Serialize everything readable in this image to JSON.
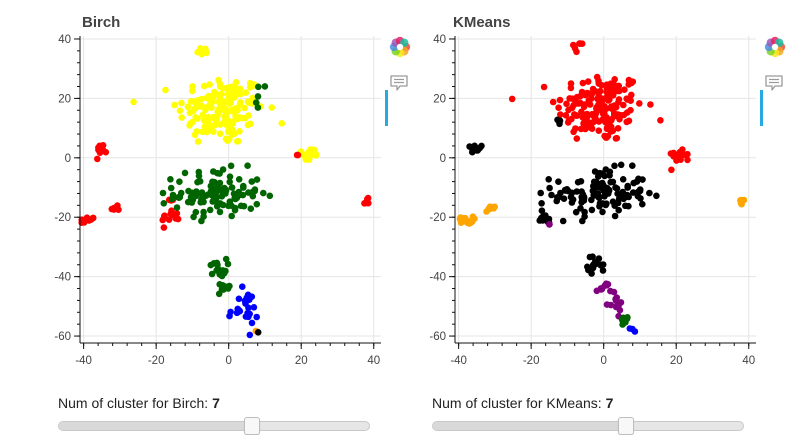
{
  "plots": [
    {
      "title": "Birch",
      "slider": {
        "label": "Num of cluster for Birch:",
        "value": 7,
        "min": 2,
        "max": 10
      }
    },
    {
      "title": "KMeans",
      "slider": {
        "label": "Num of cluster for KMeans:",
        "value": 7,
        "min": 2,
        "max": 10
      }
    }
  ],
  "toolbar": {
    "logo_icon": "bokeh-logo-icon",
    "tool_icon": "hover-tooltip-icon",
    "active_color": "#26aae1"
  },
  "colors": {
    "yellow": "#ffff00",
    "red": "#ff0000",
    "green": "#006400",
    "blue": "#0000ff",
    "orange": "#ffa500",
    "black": "#000000",
    "purple": "#800080"
  },
  "chart_data": [
    {
      "type": "scatter",
      "title": "Birch",
      "xlabel": "",
      "ylabel": "",
      "xlim": [
        -41,
        42
      ],
      "ylim": [
        -62,
        41
      ],
      "xticks": [
        -40,
        -20,
        0,
        20,
        40
      ],
      "yticks": [
        -60,
        -40,
        -20,
        0,
        20,
        40
      ],
      "grid": true,
      "clusters": [
        {
          "color": "yellow",
          "cx": -2,
          "cy": 16,
          "sx": 6,
          "sy": 6,
          "n": 150
        },
        {
          "color": "yellow",
          "cx": -7,
          "cy": 36,
          "sx": 1,
          "sy": 1,
          "n": 8
        },
        {
          "color": "yellow",
          "cx": 22,
          "cy": 1,
          "sx": 1.5,
          "sy": 1.2,
          "n": 15
        },
        {
          "color": "red",
          "cx": -35,
          "cy": 3,
          "sx": 0.8,
          "sy": 0.8,
          "n": 12
        },
        {
          "color": "red",
          "cx": -39,
          "cy": -21,
          "sx": 1,
          "sy": 0.6,
          "n": 15
        },
        {
          "color": "red",
          "cx": -31,
          "cy": -17,
          "sx": 0.8,
          "sy": 0.6,
          "n": 8
        },
        {
          "color": "red",
          "cx": -16,
          "cy": -20,
          "sx": 1.2,
          "sy": 1.5,
          "n": 12
        },
        {
          "color": "red",
          "cx": 38,
          "cy": -15,
          "sx": 0.5,
          "sy": 0.6,
          "n": 6
        },
        {
          "color": "red",
          "cx": -16,
          "cy": -14,
          "sx": 0.6,
          "sy": 0.4,
          "n": 3
        },
        {
          "color": "red",
          "cx": 19,
          "cy": 1,
          "sx": 0.5,
          "sy": 0.5,
          "n": 2
        },
        {
          "color": "green",
          "cx": -3,
          "cy": -12,
          "sx": 6,
          "sy": 4,
          "n": 110
        },
        {
          "color": "green",
          "cx": -3,
          "cy": -37,
          "sx": 1.2,
          "sy": 1.5,
          "n": 15
        },
        {
          "color": "green",
          "cx": -1,
          "cy": -44,
          "sx": 1,
          "sy": 1,
          "n": 10
        },
        {
          "color": "green",
          "cx": 8,
          "cy": 20,
          "sx": 1.5,
          "sy": 3,
          "n": 5
        },
        {
          "color": "blue",
          "cx": 4,
          "cy": -51,
          "sx": 2,
          "sy": 3,
          "n": 25
        },
        {
          "color": "orange",
          "cx": 7.5,
          "cy": -58,
          "sx": 0.3,
          "sy": 0.3,
          "n": 2
        },
        {
          "color": "black",
          "cx": 8,
          "cy": -59,
          "sx": 0.2,
          "sy": 0.2,
          "n": 1
        }
      ]
    },
    {
      "type": "scatter",
      "title": "KMeans",
      "xlabel": "",
      "ylabel": "",
      "xlim": [
        -41,
        42
      ],
      "ylim": [
        -62,
        41
      ],
      "xticks": [
        -40,
        -20,
        0,
        20,
        40
      ],
      "yticks": [
        -60,
        -40,
        -20,
        0,
        20,
        40
      ],
      "grid": true,
      "clusters": [
        {
          "color": "red",
          "cx": -1,
          "cy": 17,
          "sx": 6,
          "sy": 6,
          "n": 160
        },
        {
          "color": "red",
          "cx": -7,
          "cy": 37,
          "sx": 1,
          "sy": 1,
          "n": 6
        },
        {
          "color": "red",
          "cx": 21,
          "cy": 1,
          "sx": 1.5,
          "sy": 1.2,
          "n": 15
        },
        {
          "color": "black",
          "cx": -35,
          "cy": 3,
          "sx": 0.8,
          "sy": 0.8,
          "n": 12
        },
        {
          "color": "black",
          "cx": -1,
          "cy": -12,
          "sx": 6.5,
          "sy": 4,
          "n": 120
        },
        {
          "color": "black",
          "cx": -16,
          "cy": -20,
          "sx": 1.2,
          "sy": 1.5,
          "n": 12
        },
        {
          "color": "black",
          "cx": -2,
          "cy": -36,
          "sx": 1.2,
          "sy": 1.5,
          "n": 15
        },
        {
          "color": "black",
          "cx": -12,
          "cy": 12,
          "sx": 0.8,
          "sy": 0.8,
          "n": 3
        },
        {
          "color": "orange",
          "cx": -38,
          "cy": -21,
          "sx": 1,
          "sy": 0.6,
          "n": 15
        },
        {
          "color": "orange",
          "cx": -31,
          "cy": -17,
          "sx": 0.8,
          "sy": 0.6,
          "n": 8
        },
        {
          "color": "orange",
          "cx": 38,
          "cy": -15,
          "sx": 0.5,
          "sy": 0.6,
          "n": 6
        },
        {
          "color": "purple",
          "cx": 0,
          "cy": -44,
          "sx": 1,
          "sy": 1,
          "n": 10
        },
        {
          "color": "purple",
          "cx": 3,
          "cy": -49,
          "sx": 1.2,
          "sy": 1.5,
          "n": 14
        },
        {
          "color": "purple",
          "cx": -15,
          "cy": -22,
          "sx": 0.4,
          "sy": 0.4,
          "n": 2
        },
        {
          "color": "green",
          "cx": 6,
          "cy": -55,
          "sx": 0.8,
          "sy": 1,
          "n": 8
        },
        {
          "color": "blue",
          "cx": 7.5,
          "cy": -58,
          "sx": 0.4,
          "sy": 0.4,
          "n": 3
        }
      ]
    }
  ]
}
